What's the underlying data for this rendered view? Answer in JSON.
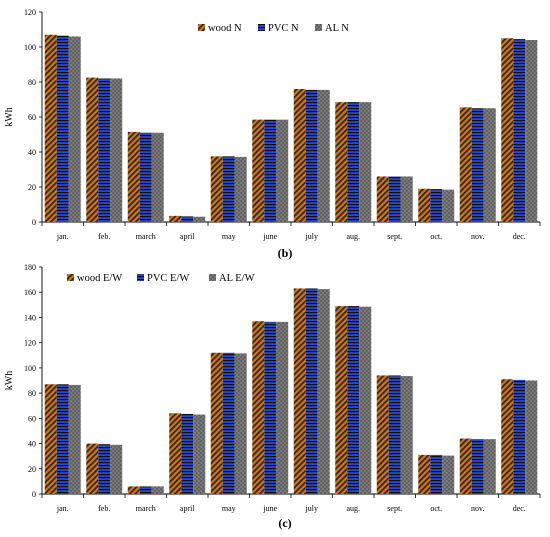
{
  "chart_data": [
    {
      "type": "bar",
      "panel_label": "(b)",
      "ylabel": "kWh",
      "ylim": [
        0,
        120
      ],
      "yticks": [
        0,
        20,
        40,
        60,
        80,
        100,
        120
      ],
      "categories": [
        "jan.",
        "feb.",
        "march",
        "april",
        "may",
        "june",
        "july",
        "aug.",
        "sept.",
        "oct.",
        "nov.",
        "dec."
      ],
      "legend_position": "top-center",
      "series": [
        {
          "name": "wood N",
          "pattern": "wood",
          "values": [
            107,
            82.5,
            51.5,
            3.5,
            37.5,
            58.5,
            76,
            68.5,
            26,
            19,
            65.5,
            105
          ]
        },
        {
          "name": "PVC N",
          "pattern": "pvc",
          "values": [
            106.5,
            82,
            51,
            3.2,
            37.5,
            58.5,
            75.5,
            68.5,
            26,
            18.8,
            65,
            104.5
          ]
        },
        {
          "name": "AL N",
          "pattern": "al",
          "values": [
            106,
            82,
            51,
            3,
            37.2,
            58.5,
            75.5,
            68.5,
            26,
            18.5,
            65,
            104
          ]
        }
      ]
    },
    {
      "type": "bar",
      "panel_label": "(c)",
      "ylabel": "kWh",
      "ylim": [
        0,
        180
      ],
      "yticks": [
        0,
        20,
        40,
        60,
        80,
        100,
        120,
        140,
        160,
        180
      ],
      "categories": [
        "jan.",
        "feb.",
        "march",
        "april",
        "may",
        "june",
        "july",
        "aug.",
        "sept.",
        "oct.",
        "nov.",
        "dec."
      ],
      "legend_position": "top-left",
      "series": [
        {
          "name": "wood E/W",
          "pattern": "wood",
          "values": [
            87,
            40,
            6,
            64,
            112,
            137,
            163,
            149,
            94,
            31,
            44,
            91
          ]
        },
        {
          "name": "PVC E/W",
          "pattern": "pvc",
          "values": [
            87,
            39.5,
            6,
            63.5,
            112,
            136.5,
            163,
            149,
            94,
            31,
            43.5,
            90.5
          ]
        },
        {
          "name": "AL E/W",
          "pattern": "al",
          "values": [
            86.5,
            39,
            6,
            63,
            111.5,
            136.5,
            162.5,
            148.5,
            93.5,
            30.5,
            43.5,
            90
          ]
        }
      ]
    }
  ]
}
